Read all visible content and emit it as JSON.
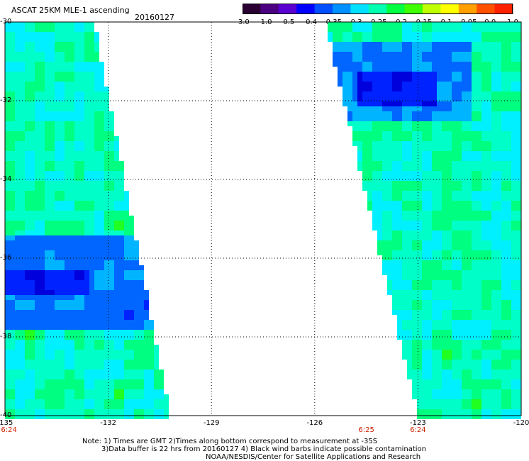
{
  "header": {
    "title": "ASCAT 25KM MLE-1 ascending",
    "date": "20160127"
  },
  "colorbar": {
    "tick_labels": [
      "-3.0",
      "-1.0",
      "-0.5",
      "-0.4",
      "-0.35",
      "-0.3",
      "-0.25",
      "-0.2",
      "-0.15",
      "-0.1",
      "-0.05",
      "0.0",
      "1.0"
    ],
    "colors": [
      "#2a0033",
      "#4b0082",
      "#5a00d0",
      "#0000ff",
      "#0050ff",
      "#0090ff",
      "#00e0ff",
      "#00ffb0",
      "#00ff40",
      "#40ff00",
      "#c0ff00",
      "#ffff00",
      "#ffa000",
      "#ff5000",
      "#ff2000"
    ]
  },
  "map": {
    "x_axis": {
      "tick_labels": [
        "-135",
        "-132",
        "-129",
        "-126",
        "-123",
        "-120"
      ],
      "lon_range": [
        -135,
        -120
      ]
    },
    "y_axis": {
      "tick_labels": [
        "-30",
        "-32",
        "-34",
        "-36",
        "-38",
        "-40"
      ],
      "lat_range": [
        -40,
        -30
      ]
    },
    "grid": true,
    "time_labels": [
      {
        "text": "6:24",
        "lon": -135
      },
      {
        "text": "6:25",
        "lon": -124.5
      },
      {
        "text": "6:24",
        "lon": -123
      }
    ],
    "swaths": [
      {
        "name": "west",
        "right_edge_lon_top": -132.4,
        "right_edge_lon_bottom": -130.2,
        "dark_blue_region": {
          "lat": [
            -36.3,
            -36.9
          ]
        },
        "blue_region": {
          "lat": [
            -35.4,
            -37.8
          ]
        }
      },
      {
        "name": "east",
        "left_edge_lon_top": -125.7,
        "left_edge_lon_bottom": -123.0,
        "blue_region": {
          "lat": [
            -30.5,
            -32.5
          ]
        },
        "dark_blue_region": {
          "lat": [
            -31.2,
            -32.2
          ]
        }
      }
    ]
  },
  "notes": {
    "line1": "Note: 1) Times are GMT 2)Times along bottom correspond to measurement at -35S",
    "line2": "3)Data buffer is 22 hrs from 20160127 4) Black wind barbs indicate possible contamination",
    "line3": "NOAA/NESDIS/Center for Satellite Applications and Research"
  }
}
